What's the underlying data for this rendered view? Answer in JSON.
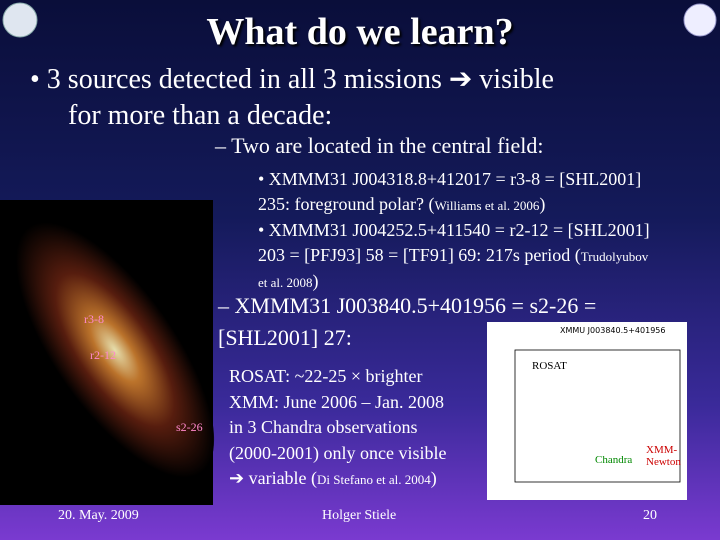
{
  "header": {
    "title": "What do we learn?"
  },
  "main_bullet": [
    "• 3 sources detected in all 3 missions ➔ visible",
    "for more than a decade:"
  ],
  "central_field": {
    "heading": "– Two are located in the central field:",
    "items": [
      [
        [
          "• XMMM31 J004318.8+412017 = r3-8 = [SHL2001]"
        ],
        [
          "235: foreground polar? (",
          "Williams et al. 2006",
          ")"
        ]
      ],
      [
        [
          "• XMMM31 J004252.5+411540 = r2-12 = [SHL2001]"
        ],
        [
          "203 = [PFJ93] 58 = [TF91] 69: 217s period (",
          "Trudolyubov"
        ],
        [
          "et al. 2008",
          ")"
        ]
      ]
    ]
  },
  "third_source": {
    "heading": [
      "– XMMM31 J003840.5+401956 = s2-26 =",
      "[SHL2001] 27:"
    ],
    "details": [
      [
        "ROSAT: ~22-25 × brighter"
      ],
      [
        "XMM: June 2006 – Jan. 2008"
      ],
      [
        "in 3 Chandra observations"
      ],
      [
        "(2000-2001) only once visible"
      ],
      [
        "➔ variable (",
        "Di Stefano et al. 2004",
        ")"
      ]
    ]
  },
  "image_labels": [
    "r3-8",
    "r2-12",
    "s2-26"
  ],
  "inset": {
    "title": "XMMU J003840.5+401956",
    "labels": [
      "ROSAT",
      "Chandra",
      "XMM-Newton"
    ]
  },
  "footer": {
    "date": "20. May. 2009",
    "author": "Holger Stiele",
    "page": "20"
  }
}
